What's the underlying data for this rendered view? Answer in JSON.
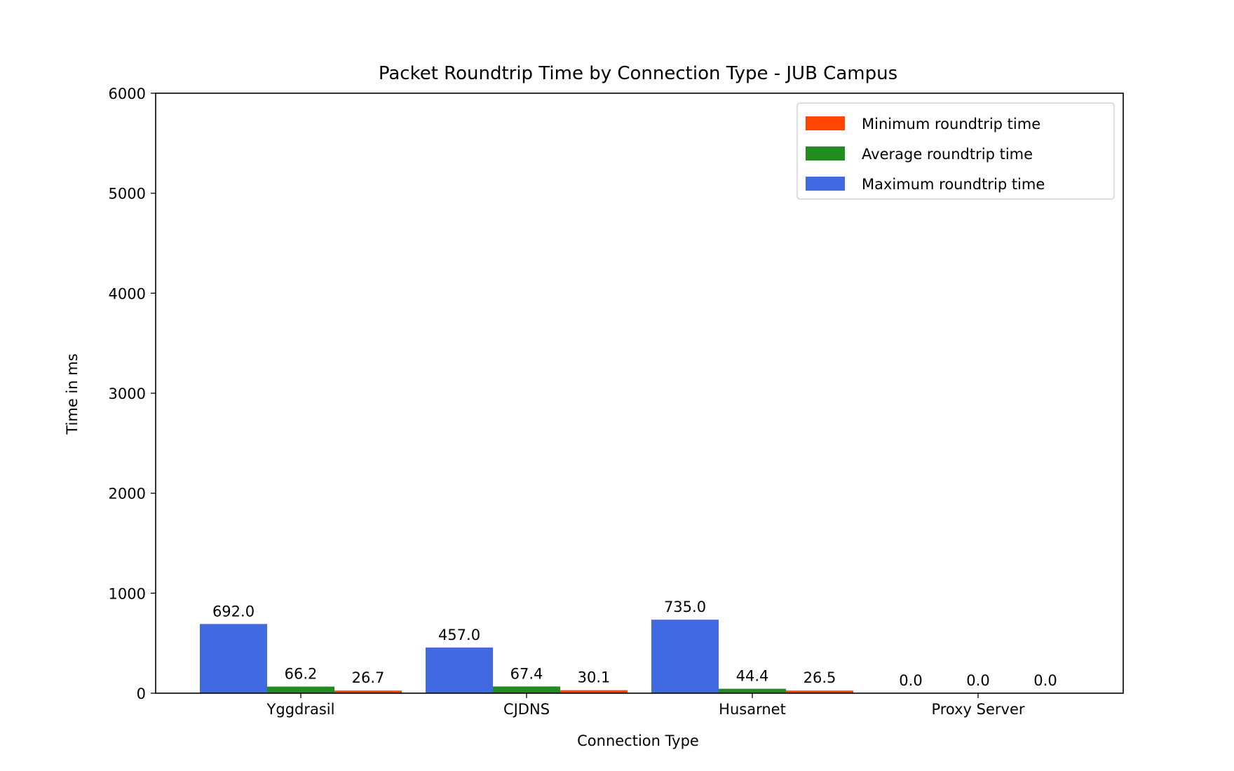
{
  "chart_data": {
    "type": "bar",
    "title": "Packet Roundtrip Time by Connection Type - JUB Campus",
    "xlabel": "Connection Type",
    "ylabel": "Time in ms",
    "ylim": [
      0,
      6000
    ],
    "yticks": [
      "0",
      "1000",
      "2000",
      "3000",
      "4000",
      "5000",
      "6000"
    ],
    "categories": [
      "Yggdrasil",
      "CJDNS",
      "Husarnet",
      "Proxy Server"
    ],
    "series": [
      {
        "name": "Maximum roundtrip time",
        "color": "#4169e1",
        "values": [
          692.0,
          457.0,
          735.0,
          0.0
        ],
        "labels": [
          "692.0",
          "457.0",
          "735.0",
          "0.0"
        ]
      },
      {
        "name": "Average roundtrip time",
        "color": "#228b22",
        "values": [
          66.2,
          67.4,
          44.4,
          0.0
        ],
        "labels": [
          "66.2",
          "67.4",
          "44.4",
          "0.0"
        ]
      },
      {
        "name": "Minimum roundtrip time",
        "color": "#ff4500",
        "values": [
          26.7,
          30.1,
          26.5,
          0.0
        ],
        "labels": [
          "26.7",
          "30.1",
          "26.5",
          "0.0"
        ]
      }
    ],
    "legend": {
      "placement": "top-right",
      "order": [
        2,
        1,
        0
      ]
    },
    "grid": false
  }
}
